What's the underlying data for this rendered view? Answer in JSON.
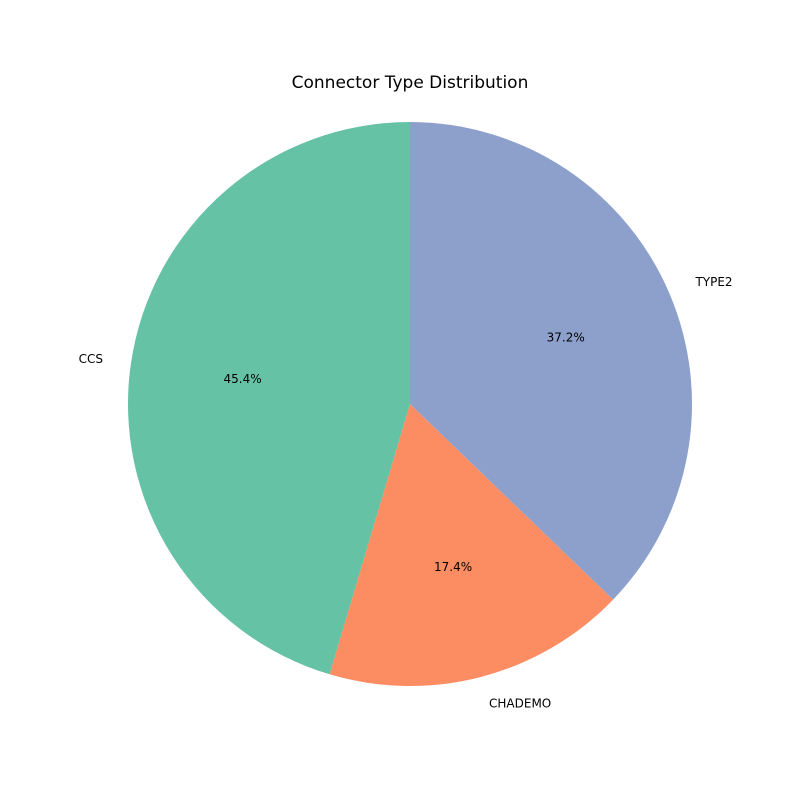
{
  "chart_data": {
    "type": "pie",
    "title": "Connector Type Distribution",
    "start_angle_deg": 90,
    "direction": "counterclockwise",
    "slices": [
      {
        "label": "CCS",
        "value": 45.4,
        "pct_label": "45.4%",
        "color": "#66c2a5"
      },
      {
        "label": "CHADEMO",
        "value": 17.4,
        "pct_label": "17.4%",
        "color": "#fc8d62"
      },
      {
        "label": "TYPE2",
        "value": 37.2,
        "pct_label": "37.2%",
        "color": "#8da0cb"
      }
    ]
  }
}
